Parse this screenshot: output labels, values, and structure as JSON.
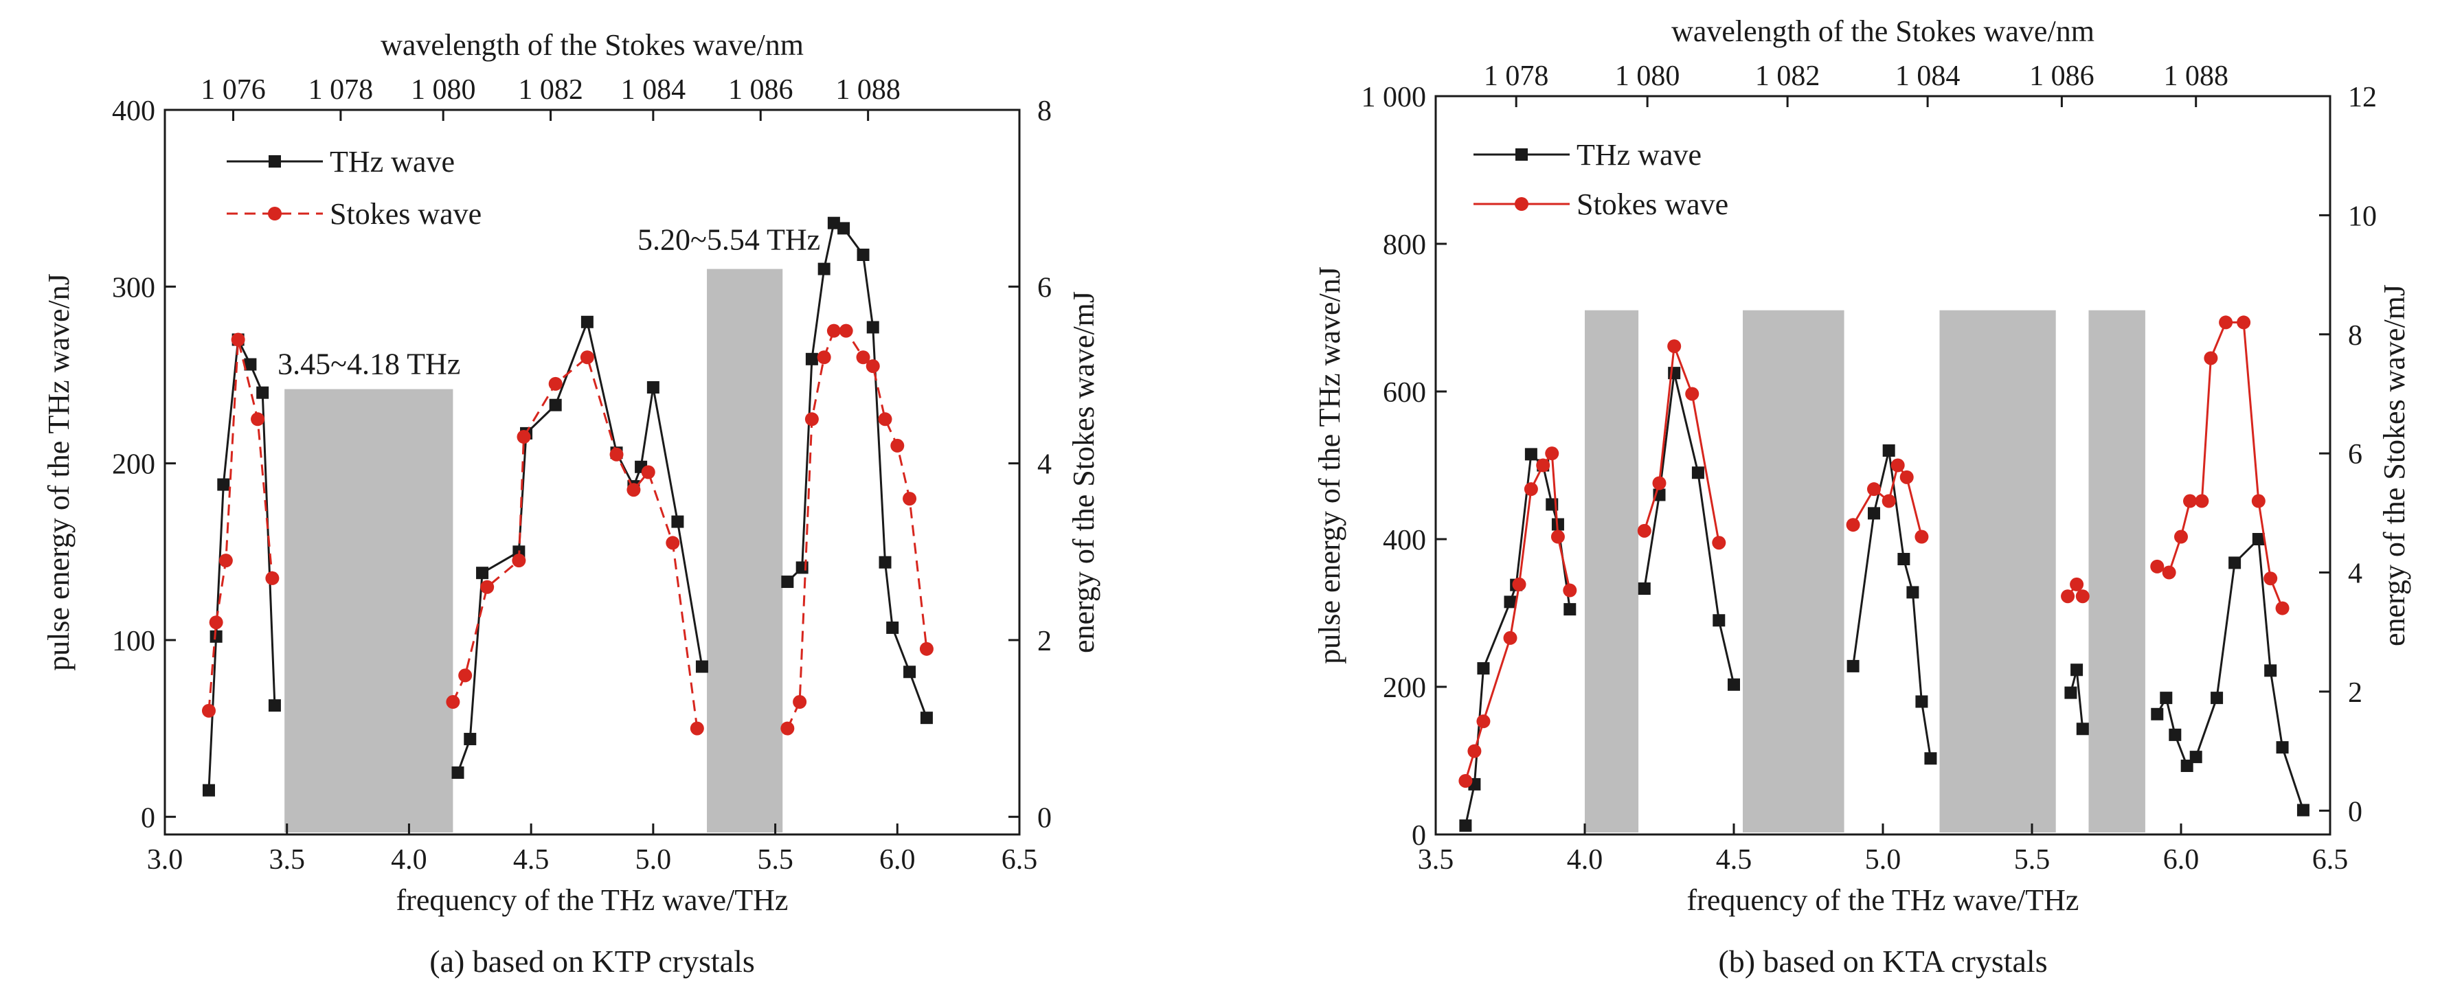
{
  "chart_data": [
    {
      "type": "line",
      "caption": "(a) based on KTP crystals",
      "xlabel": "frequency of the THz wave/THz",
      "ylabel": "pulse energy of the THz wave/nJ",
      "y2label": "energy of the Stokes wave/mJ",
      "x2label": "wavelength of the Stokes wave/nm",
      "xlim": [
        3.0,
        6.5
      ],
      "ylim": [
        -10,
        400
      ],
      "y2lim": [
        -0.2,
        8
      ],
      "xticks": [
        3.0,
        3.5,
        4.0,
        4.5,
        5.0,
        5.5,
        6.0,
        6.5
      ],
      "xtick_labels": [
        "3.0",
        "3.5",
        "4.0",
        "4.5",
        "5.0",
        "5.5",
        "6.0",
        "6.5"
      ],
      "yticks": [
        0,
        100,
        200,
        300,
        400
      ],
      "ytick_labels": [
        "0",
        "100",
        "200",
        "300",
        "400"
      ],
      "y2ticks": [
        0,
        2,
        4,
        6,
        8
      ],
      "y2tick_labels": [
        "0",
        "2",
        "4",
        "6",
        "8"
      ],
      "top_ticks": [
        {
          "label": "1 076",
          "x": 3.28
        },
        {
          "label": "1 078",
          "x": 3.72
        },
        {
          "label": "1 080",
          "x": 4.14
        },
        {
          "label": "1 082",
          "x": 4.58
        },
        {
          "label": "1 084",
          "x": 5.0
        },
        {
          "label": "1 086",
          "x": 5.44
        },
        {
          "label": "1 088",
          "x": 5.88
        }
      ],
      "legend": {
        "placement": "top-left"
      },
      "bands": [
        {
          "x0": 3.49,
          "x1": 4.18,
          "top": 242,
          "label": "3.45~4.18 THz"
        },
        {
          "x0": 5.22,
          "x1": 5.53,
          "top": 310,
          "label": "5.20~5.54 THz"
        }
      ],
      "series": [
        {
          "name": "THz wave",
          "axis": "left",
          "color": "#1a1a1a",
          "style": "solid",
          "marker": "square",
          "segments": [
            [
              [
                3.18,
                15
              ],
              [
                3.21,
                102
              ],
              [
                3.24,
                188
              ],
              [
                3.3,
                270
              ],
              [
                3.35,
                256
              ],
              [
                3.4,
                240
              ],
              [
                3.45,
                63
              ]
            ],
            [
              [
                4.2,
                25
              ],
              [
                4.25,
                44
              ],
              [
                4.3,
                138
              ],
              [
                4.45,
                150
              ],
              [
                4.48,
                217
              ],
              [
                4.6,
                233
              ],
              [
                4.73,
                280
              ],
              [
                4.85,
                206
              ],
              [
                4.92,
                187
              ],
              [
                4.95,
                198
              ],
              [
                5.0,
                243
              ],
              [
                5.1,
                167
              ],
              [
                5.2,
                85
              ]
            ],
            [
              [
                5.55,
                133
              ],
              [
                5.61,
                141
              ],
              [
                5.65,
                259
              ],
              [
                5.7,
                310
              ],
              [
                5.74,
                336
              ],
              [
                5.78,
                333
              ],
              [
                5.86,
                318
              ],
              [
                5.9,
                277
              ],
              [
                5.95,
                144
              ],
              [
                5.98,
                107
              ],
              [
                6.05,
                82
              ],
              [
                6.12,
                56
              ]
            ]
          ]
        },
        {
          "name": "Stokes wave",
          "axis": "right",
          "color": "#d7261e",
          "style": "dashed",
          "marker": "circle",
          "segments": [
            [
              [
                3.18,
                1.2
              ],
              [
                3.21,
                2.2
              ],
              [
                3.25,
                2.9
              ],
              [
                3.3,
                5.4
              ],
              [
                3.38,
                4.5
              ],
              [
                3.44,
                2.7
              ]
            ],
            [
              [
                4.18,
                1.3
              ],
              [
                4.23,
                1.6
              ],
              [
                4.32,
                2.6
              ],
              [
                4.45,
                2.9
              ],
              [
                4.47,
                4.3
              ],
              [
                4.6,
                4.9
              ],
              [
                4.73,
                5.2
              ],
              [
                4.85,
                4.1
              ],
              [
                4.92,
                3.7
              ],
              [
                4.98,
                3.9
              ],
              [
                5.08,
                3.1
              ],
              [
                5.18,
                1.0
              ]
            ],
            [
              [
                5.55,
                1.0
              ],
              [
                5.6,
                1.3
              ],
              [
                5.65,
                4.5
              ],
              [
                5.7,
                5.2
              ],
              [
                5.74,
                5.5
              ],
              [
                5.79,
                5.5
              ],
              [
                5.86,
                5.2
              ],
              [
                5.9,
                5.1
              ],
              [
                5.95,
                4.5
              ],
              [
                6.0,
                4.2
              ],
              [
                6.05,
                3.6
              ],
              [
                6.12,
                1.9
              ]
            ]
          ]
        }
      ]
    },
    {
      "type": "line",
      "caption": "(b) based on KTA crystals",
      "xlabel": "frequency of the THz wave/THz",
      "ylabel": "pulse energy of the THz wave/nJ",
      "y2label": "energy of the Stokes wave/mJ",
      "x2label": "wavelength of the Stokes wave/nm",
      "xlim": [
        3.5,
        6.5
      ],
      "ylim": [
        0,
        1000
      ],
      "y2lim": [
        -0.4,
        12
      ],
      "xticks": [
        3.5,
        4.0,
        4.5,
        5.0,
        5.5,
        6.0,
        6.5
      ],
      "xtick_labels": [
        "3.5",
        "4.0",
        "4.5",
        "5.0",
        "5.5",
        "6.0",
        "6.5"
      ],
      "yticks": [
        0,
        200,
        400,
        600,
        800,
        1000
      ],
      "ytick_labels": [
        "0",
        "200",
        "400",
        "600",
        "800",
        "1 000"
      ],
      "y2ticks": [
        0,
        2,
        4,
        6,
        8,
        10,
        12
      ],
      "y2tick_labels": [
        "0",
        "2",
        "4",
        "6",
        "8",
        "10",
        "12"
      ],
      "top_ticks": [
        {
          "label": "1 078",
          "x": 3.77
        },
        {
          "label": "1 080",
          "x": 4.21
        },
        {
          "label": "1 082",
          "x": 4.68
        },
        {
          "label": "1 084",
          "x": 5.15
        },
        {
          "label": "1 086",
          "x": 5.6
        },
        {
          "label": "1 088",
          "x": 6.05
        }
      ],
      "legend": {
        "placement": "top-left"
      },
      "bands": [
        {
          "x0": 4.0,
          "x1": 4.18,
          "top": 710,
          "label": ""
        },
        {
          "x0": 4.53,
          "x1": 4.87,
          "top": 710,
          "label": ""
        },
        {
          "x0": 5.19,
          "x1": 5.58,
          "top": 710,
          "label": ""
        },
        {
          "x0": 5.69,
          "x1": 5.88,
          "top": 710,
          "label": ""
        }
      ],
      "series": [
        {
          "name": "THz wave",
          "axis": "left",
          "color": "#1a1a1a",
          "style": "solid",
          "marker": "square",
          "segments": [
            [
              [
                3.6,
                12
              ],
              [
                3.63,
                68
              ],
              [
                3.66,
                225
              ],
              [
                3.75,
                315
              ],
              [
                3.77,
                338
              ],
              [
                3.82,
                515
              ],
              [
                3.86,
                500
              ],
              [
                3.89,
                447
              ],
              [
                3.91,
                420
              ],
              [
                3.95,
                305
              ]
            ],
            [
              [
                4.2,
                333
              ],
              [
                4.25,
                460
              ],
              [
                4.3,
                625
              ],
              [
                4.38,
                490
              ],
              [
                4.45,
                290
              ],
              [
                4.5,
                203
              ]
            ],
            [
              [
                4.9,
                228
              ],
              [
                4.97,
                435
              ],
              [
                5.02,
                520
              ],
              [
                5.07,
                373
              ],
              [
                5.1,
                328
              ],
              [
                5.13,
                180
              ],
              [
                5.16,
                103
              ]
            ],
            [
              [
                5.63,
                192
              ],
              [
                5.65,
                223
              ],
              [
                5.67,
                143
              ]
            ],
            [
              [
                5.92,
                163
              ],
              [
                5.95,
                185
              ],
              [
                5.98,
                135
              ],
              [
                6.02,
                93
              ],
              [
                6.05,
                105
              ],
              [
                6.12,
                185
              ],
              [
                6.18,
                368
              ],
              [
                6.26,
                400
              ],
              [
                6.3,
                222
              ],
              [
                6.34,
                118
              ],
              [
                6.41,
                33
              ]
            ]
          ]
        },
        {
          "name": "Stokes wave",
          "axis": "right",
          "color": "#d7261e",
          "style": "solid",
          "marker": "circle",
          "segments": [
            [
              [
                3.6,
                0.5
              ],
              [
                3.63,
                1.0
              ],
              [
                3.66,
                1.5
              ],
              [
                3.75,
                2.9
              ],
              [
                3.78,
                3.8
              ],
              [
                3.82,
                5.4
              ],
              [
                3.86,
                5.8
              ],
              [
                3.89,
                6.0
              ],
              [
                3.91,
                4.6
              ],
              [
                3.95,
                3.7
              ]
            ],
            [
              [
                4.2,
                4.7
              ],
              [
                4.25,
                5.5
              ],
              [
                4.3,
                7.8
              ],
              [
                4.36,
                7.0
              ],
              [
                4.45,
                4.5
              ]
            ],
            [
              [
                4.9,
                4.8
              ],
              [
                4.97,
                5.4
              ],
              [
                5.02,
                5.2
              ],
              [
                5.05,
                5.8
              ],
              [
                5.08,
                5.6
              ],
              [
                5.13,
                4.6
              ]
            ],
            [
              [
                5.62,
                3.6
              ],
              [
                5.65,
                3.8
              ],
              [
                5.67,
                3.6
              ]
            ],
            [
              [
                5.92,
                4.1
              ],
              [
                5.96,
                4.0
              ],
              [
                6.0,
                4.6
              ],
              [
                6.03,
                5.2
              ],
              [
                6.07,
                5.2
              ],
              [
                6.1,
                7.6
              ],
              [
                6.15,
                8.2
              ],
              [
                6.21,
                8.2
              ],
              [
                6.26,
                5.2
              ],
              [
                6.3,
                3.9
              ],
              [
                6.34,
                3.4
              ]
            ]
          ]
        }
      ]
    }
  ]
}
